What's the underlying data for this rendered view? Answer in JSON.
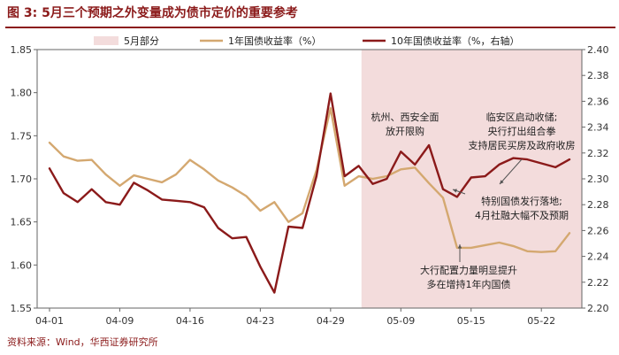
{
  "figure": {
    "title": "图 3:  5月三个预期之外变量成为债市定价的重要参考",
    "source": "资料来源：Wind，华西证券研究所"
  },
  "colors": {
    "title": "#8b1a1a",
    "shade": "#f3dcdc",
    "series_1y": "#d4a870",
    "series_10y": "#8b1a1a",
    "axis": "#666666"
  },
  "chart_data": {
    "type": "line",
    "legend": {
      "placement": "top",
      "entries": [
        "5月部分",
        "1年国债收益率（%）",
        "10年国债收益率（%，右轴）"
      ]
    },
    "x_index_range": [
      0,
      37
    ],
    "x_ticks": [
      {
        "i": 0,
        "label": "04-01"
      },
      {
        "i": 5,
        "label": "04-09"
      },
      {
        "i": 10,
        "label": "04-16"
      },
      {
        "i": 15,
        "label": "04-23"
      },
      {
        "i": 20,
        "label": "04-29"
      },
      {
        "i": 25,
        "label": "05-09"
      },
      {
        "i": 30,
        "label": "05-15"
      },
      {
        "i": 35,
        "label": "05-22"
      }
    ],
    "shaded_region": {
      "label": "5月部分",
      "from_i": 22.2,
      "to_i": 37
    },
    "y_left": {
      "min": 1.55,
      "max": 1.85,
      "ticks": [
        "1.55",
        "1.60",
        "1.65",
        "1.70",
        "1.75",
        "1.80",
        "1.85"
      ]
    },
    "y_right": {
      "min": 2.2,
      "max": 2.4,
      "ticks": [
        "2.20",
        "2.22",
        "2.24",
        "2.26",
        "2.28",
        "2.30",
        "2.32",
        "2.34",
        "2.36",
        "2.38",
        "2.40"
      ]
    },
    "grid": false,
    "series": [
      {
        "name": "1年国债收益率（%）",
        "axis": "left",
        "color": "#d4a870",
        "points": [
          [
            0,
            1.742
          ],
          [
            1,
            1.726
          ],
          [
            2,
            1.721
          ],
          [
            3,
            1.722
          ],
          [
            4,
            1.705
          ],
          [
            5,
            1.692
          ],
          [
            6,
            1.704
          ],
          [
            7,
            1.7
          ],
          [
            8,
            1.696
          ],
          [
            9,
            1.705
          ],
          [
            10,
            1.722
          ],
          [
            11,
            1.711
          ],
          [
            12,
            1.698
          ],
          [
            13,
            1.69
          ],
          [
            14,
            1.68
          ],
          [
            15,
            1.663
          ],
          [
            16,
            1.673
          ],
          [
            17,
            1.65
          ],
          [
            18,
            1.66
          ],
          [
            19,
            1.71
          ],
          [
            20,
            1.782
          ],
          [
            21,
            1.692
          ],
          [
            22,
            1.703
          ],
          [
            23,
            1.7
          ],
          [
            24,
            1.703
          ],
          [
            25,
            1.711
          ],
          [
            26,
            1.713
          ],
          [
            27,
            1.695
          ],
          [
            28,
            1.678
          ],
          [
            29,
            1.62
          ],
          [
            30,
            1.62
          ],
          [
            31,
            1.623
          ],
          [
            32,
            1.626
          ],
          [
            33,
            1.622
          ],
          [
            34,
            1.616
          ],
          [
            35,
            1.615
          ],
          [
            36,
            1.616
          ],
          [
            37,
            1.637
          ]
        ]
      },
      {
        "name": "10年国债收益率（%，右轴）",
        "axis": "right",
        "color": "#8b1a1a",
        "points": [
          [
            0,
            2.308
          ],
          [
            1,
            2.289
          ],
          [
            2,
            2.282
          ],
          [
            3,
            2.292
          ],
          [
            4,
            2.282
          ],
          [
            5,
            2.28
          ],
          [
            6,
            2.297
          ],
          [
            7,
            2.291
          ],
          [
            8,
            2.284
          ],
          [
            9,
            2.283
          ],
          [
            10,
            2.282
          ],
          [
            11,
            2.278
          ],
          [
            12,
            2.262
          ],
          [
            13,
            2.254
          ],
          [
            14,
            2.255
          ],
          [
            15,
            2.232
          ],
          [
            16,
            2.212
          ],
          [
            17,
            2.263
          ],
          [
            18,
            2.262
          ],
          [
            19,
            2.302
          ],
          [
            20,
            2.366
          ],
          [
            21,
            2.302
          ],
          [
            22,
            2.31
          ],
          [
            23,
            2.296
          ],
          [
            24,
            2.3
          ],
          [
            25,
            2.321
          ],
          [
            26,
            2.311
          ],
          [
            27,
            2.326
          ],
          [
            28,
            2.292
          ],
          [
            29,
            2.286
          ],
          [
            30,
            2.301
          ],
          [
            31,
            2.302
          ],
          [
            32,
            2.311
          ],
          [
            33,
            2.316
          ],
          [
            34,
            2.315
          ],
          [
            35,
            2.312
          ],
          [
            36,
            2.309
          ],
          [
            37,
            2.315
          ]
        ]
      }
    ],
    "annotations": [
      {
        "lines": [
          "杭州、西安全面",
          "放开限购"
        ]
      },
      {
        "lines": [
          "临安区启动收储;",
          "央行打出组合拳",
          "支持居民买房及政府收房"
        ]
      },
      {
        "lines": [
          "特别国债发行落地;",
          "4月社融大幅不及预期"
        ]
      },
      {
        "lines": [
          "大行配置力量明显提升",
          "多在增持1年内国债"
        ]
      }
    ]
  }
}
